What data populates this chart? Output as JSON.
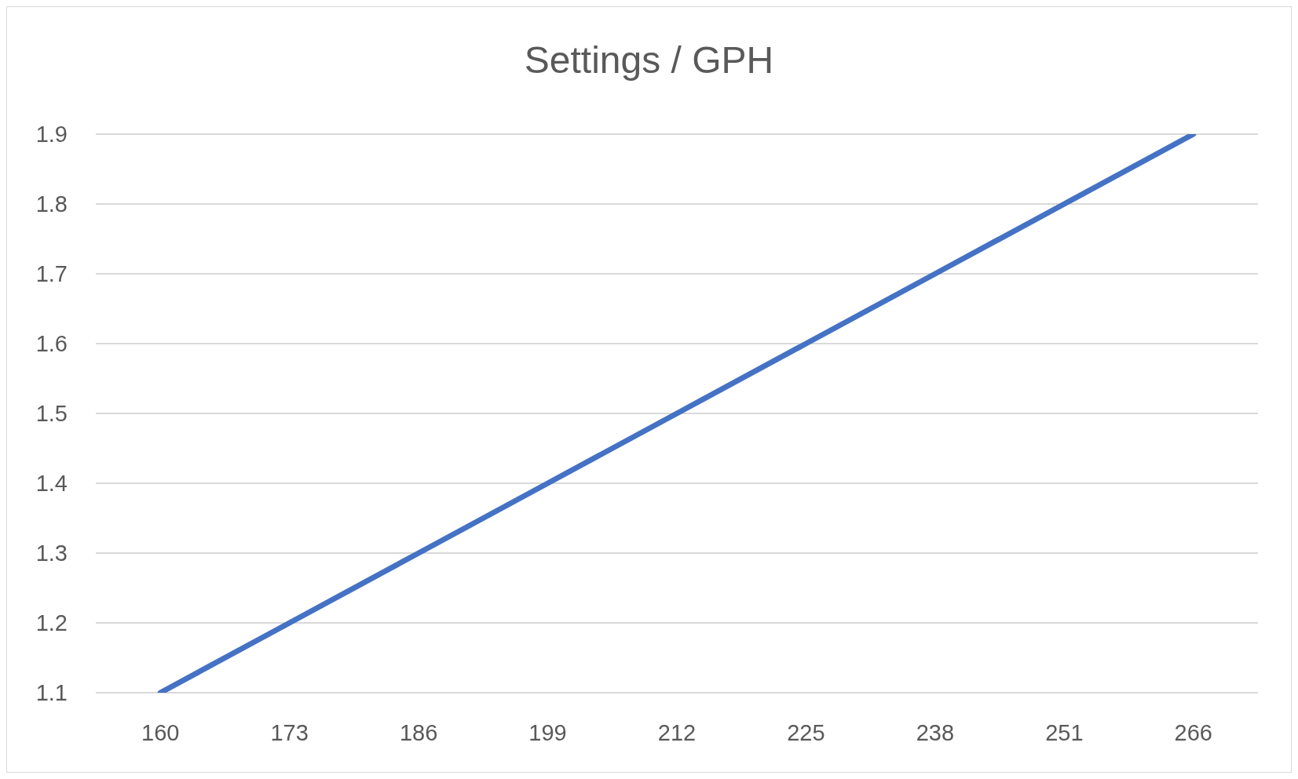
{
  "chart_data": {
    "type": "line",
    "title": "Settings / GPH",
    "categories": [
      "160",
      "173",
      "186",
      "199",
      "212",
      "225",
      "238",
      "251",
      "266"
    ],
    "series": [
      {
        "color": "#4472c4",
        "values": [
          1.1,
          1.2,
          1.3,
          1.4,
          1.5,
          1.6,
          1.7,
          1.8,
          1.9
        ]
      }
    ],
    "ylim": [
      1.1,
      1.9
    ],
    "yticks": [
      1.1,
      1.2,
      1.3,
      1.4,
      1.5,
      1.6,
      1.7,
      1.8,
      1.9
    ],
    "grid": "y",
    "marker": "none"
  }
}
